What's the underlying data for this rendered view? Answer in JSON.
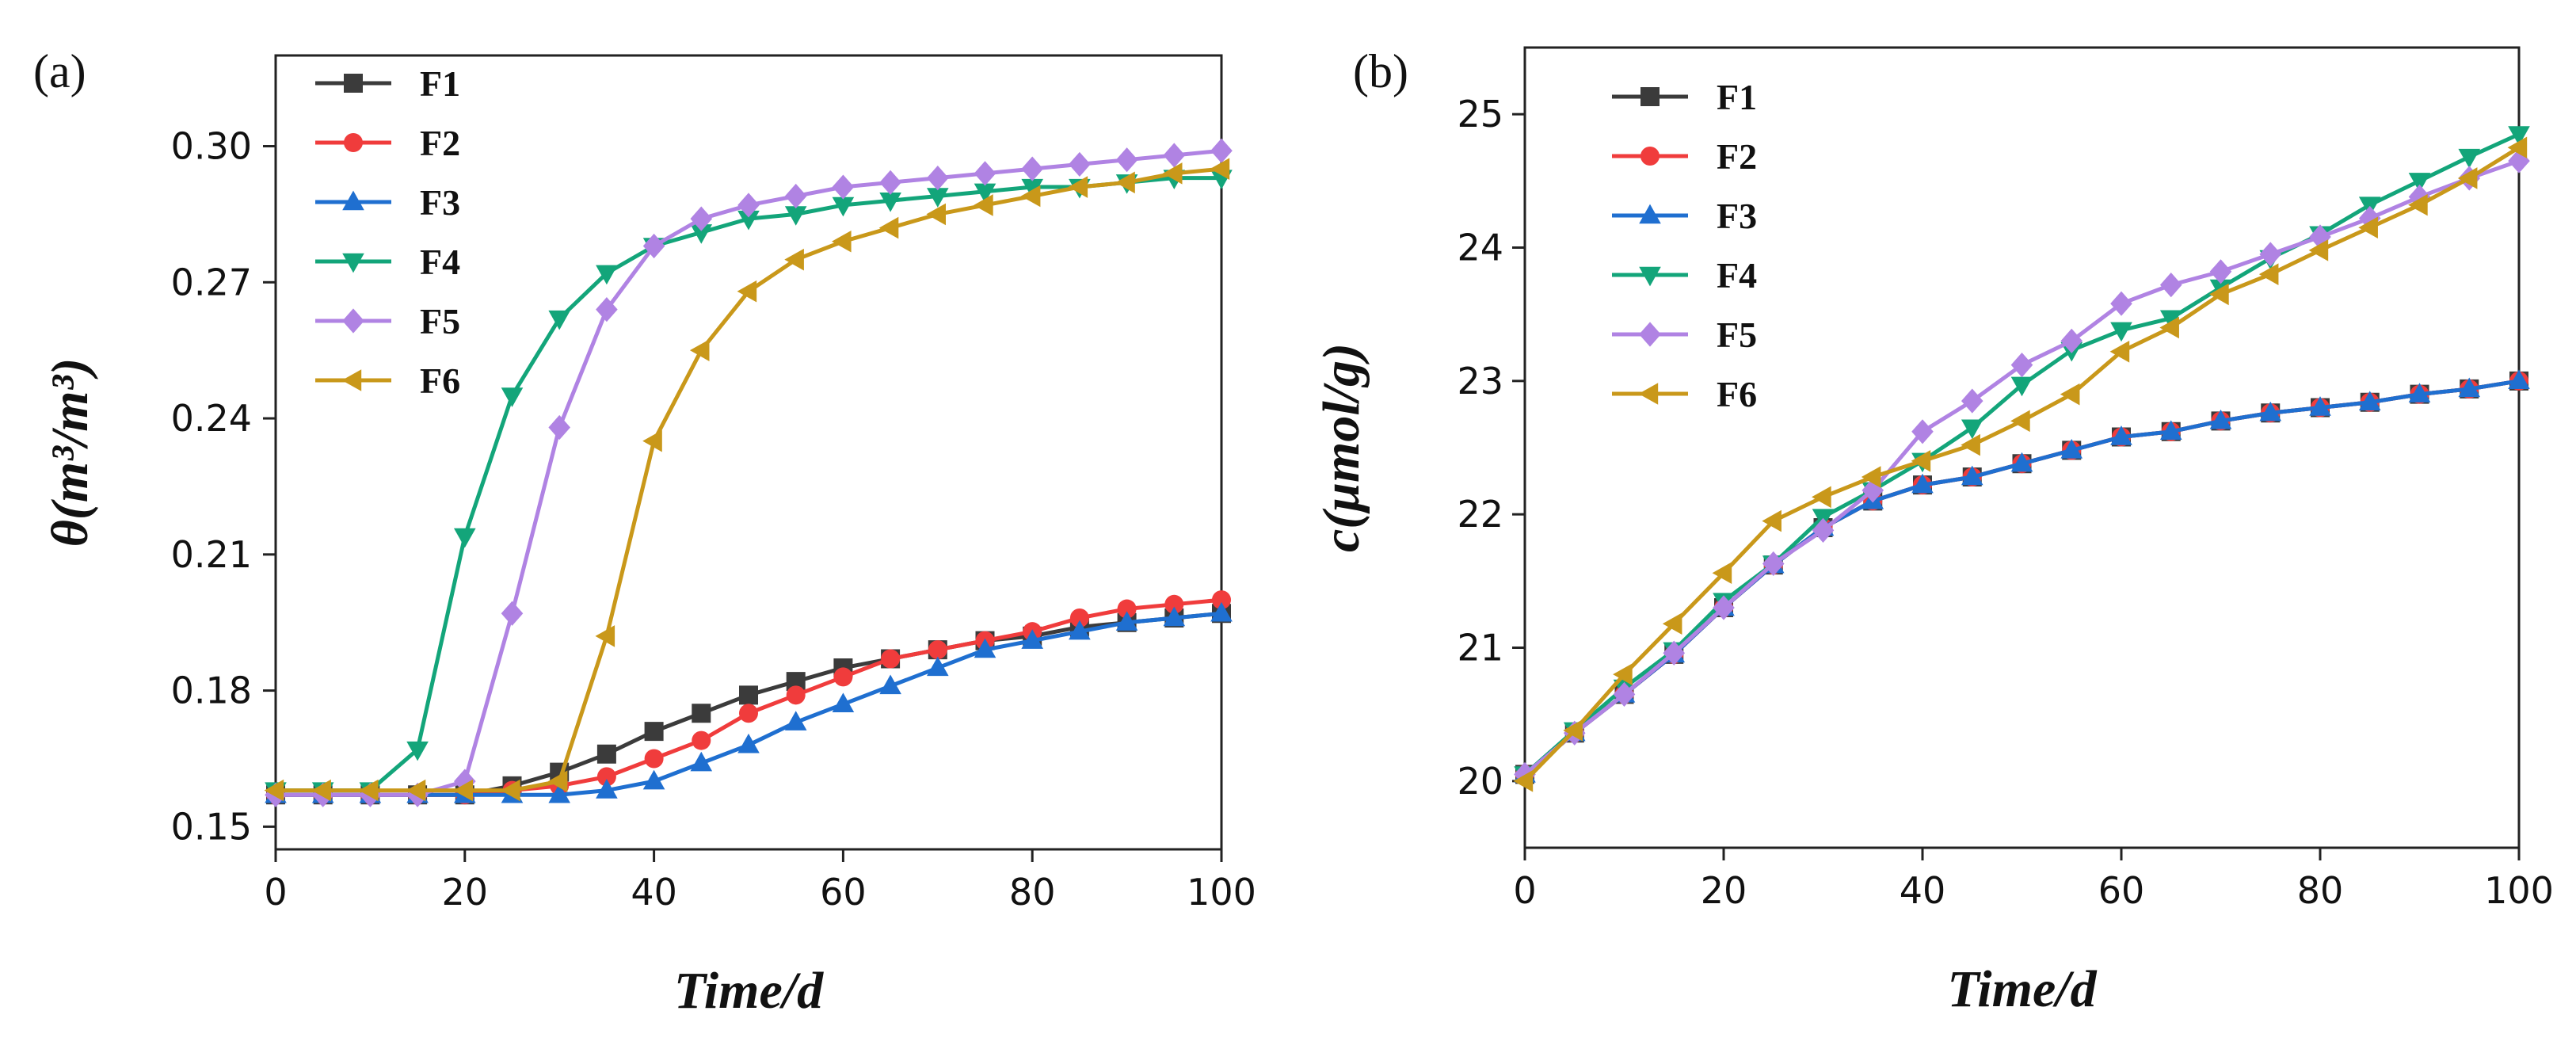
{
  "chart_data": [
    {
      "type": "line",
      "panel_label": "(a)",
      "title": "",
      "xlabel": "Time/d",
      "ylabel": "θ(m³/m³)",
      "xlim": [
        0,
        100
      ],
      "ylim": [
        0.145,
        0.32
      ],
      "x_ticks": [
        "0",
        "20",
        "40",
        "60",
        "80",
        "100"
      ],
      "y_ticks": [
        "0.15",
        "0.18",
        "0.21",
        "0.24",
        "0.27",
        "0.30"
      ],
      "legend_position": "top-left",
      "x": [
        0,
        5,
        10,
        15,
        20,
        25,
        30,
        35,
        40,
        45,
        50,
        55,
        60,
        65,
        70,
        75,
        80,
        85,
        90,
        95,
        100
      ],
      "series": [
        {
          "name": "F1",
          "color": "#3b3b3b",
          "marker": "square",
          "values": [
            0.157,
            0.157,
            0.157,
            0.157,
            0.157,
            0.159,
            0.162,
            0.166,
            0.171,
            0.175,
            0.179,
            0.182,
            0.185,
            0.187,
            0.189,
            0.191,
            0.192,
            0.194,
            0.195,
            0.196,
            0.197
          ]
        },
        {
          "name": "F2",
          "color": "#f03c3c",
          "marker": "circle",
          "values": [
            0.157,
            0.157,
            0.157,
            0.157,
            0.157,
            0.158,
            0.159,
            0.161,
            0.165,
            0.169,
            0.175,
            0.179,
            0.183,
            0.187,
            0.189,
            0.191,
            0.193,
            0.196,
            0.198,
            0.199,
            0.2
          ]
        },
        {
          "name": "F3",
          "color": "#1f6fd0",
          "marker": "triangle-up",
          "values": [
            0.157,
            0.157,
            0.157,
            0.157,
            0.157,
            0.157,
            0.157,
            0.158,
            0.16,
            0.164,
            0.168,
            0.173,
            0.177,
            0.181,
            0.185,
            0.189,
            0.191,
            0.193,
            0.195,
            0.196,
            0.197
          ]
        },
        {
          "name": "F4",
          "color": "#13a57a",
          "marker": "triangle-down",
          "values": [
            0.158,
            0.158,
            0.158,
            0.167,
            0.214,
            0.245,
            0.262,
            0.272,
            0.278,
            0.281,
            0.284,
            0.285,
            0.287,
            0.288,
            0.289,
            0.29,
            0.291,
            0.291,
            0.292,
            0.293,
            0.293
          ]
        },
        {
          "name": "F5",
          "color": "#b083e3",
          "marker": "diamond",
          "values": [
            0.157,
            0.157,
            0.157,
            0.157,
            0.16,
            0.197,
            0.238,
            0.264,
            0.278,
            0.284,
            0.287,
            0.289,
            0.291,
            0.292,
            0.293,
            0.294,
            0.295,
            0.296,
            0.297,
            0.298,
            0.299
          ]
        },
        {
          "name": "F6",
          "color": "#c9981a",
          "marker": "triangle-left",
          "values": [
            0.158,
            0.158,
            0.158,
            0.158,
            0.158,
            0.158,
            0.16,
            0.192,
            0.235,
            0.255,
            0.268,
            0.275,
            0.279,
            0.282,
            0.285,
            0.287,
            0.289,
            0.291,
            0.292,
            0.294,
            0.295
          ]
        }
      ]
    },
    {
      "type": "line",
      "panel_label": "(b)",
      "title": "",
      "xlabel": "Time/d",
      "ylabel": "c(μmol/g)",
      "xlim": [
        0,
        100
      ],
      "ylim": [
        19.5,
        25.5
      ],
      "x_ticks": [
        "0",
        "20",
        "40",
        "60",
        "80",
        "100"
      ],
      "y_ticks": [
        "20",
        "21",
        "22",
        "23",
        "24",
        "25"
      ],
      "legend_position": "top-left",
      "x": [
        0,
        5,
        10,
        15,
        20,
        25,
        30,
        35,
        40,
        45,
        50,
        55,
        60,
        65,
        70,
        75,
        80,
        85,
        90,
        95,
        100
      ],
      "series": [
        {
          "name": "F1",
          "color": "#3b3b3b",
          "marker": "square",
          "values": [
            20.05,
            20.36,
            20.65,
            20.95,
            21.3,
            21.62,
            21.9,
            22.1,
            22.22,
            22.28,
            22.38,
            22.48,
            22.58,
            22.62,
            22.7,
            22.76,
            22.8,
            22.84,
            22.9,
            22.94,
            23.0
          ]
        },
        {
          "name": "F2",
          "color": "#f03c3c",
          "marker": "circle",
          "values": [
            20.05,
            20.36,
            20.65,
            20.95,
            21.3,
            21.62,
            21.9,
            22.1,
            22.22,
            22.28,
            22.38,
            22.48,
            22.58,
            22.62,
            22.7,
            22.76,
            22.8,
            22.84,
            22.9,
            22.94,
            23.0
          ]
        },
        {
          "name": "F3",
          "color": "#1f6fd0",
          "marker": "triangle-up",
          "values": [
            20.05,
            20.36,
            20.65,
            20.95,
            21.3,
            21.62,
            21.9,
            22.1,
            22.22,
            22.28,
            22.38,
            22.48,
            22.58,
            22.62,
            22.7,
            22.76,
            22.8,
            22.84,
            22.9,
            22.94,
            23.0
          ]
        },
        {
          "name": "F4",
          "color": "#13a57a",
          "marker": "triangle-down",
          "values": [
            20.05,
            20.38,
            20.7,
            20.98,
            21.35,
            21.63,
            21.98,
            22.18,
            22.4,
            22.65,
            22.97,
            23.23,
            23.38,
            23.47,
            23.7,
            23.92,
            24.1,
            24.32,
            24.5,
            24.68,
            24.85
          ]
        },
        {
          "name": "F5",
          "color": "#b083e3",
          "marker": "diamond",
          "values": [
            20.05,
            20.36,
            20.65,
            20.96,
            21.3,
            21.63,
            21.88,
            22.18,
            22.62,
            22.85,
            23.12,
            23.3,
            23.58,
            23.72,
            23.82,
            23.95,
            24.08,
            24.22,
            24.38,
            24.52,
            24.65
          ]
        },
        {
          "name": "F6",
          "color": "#c9981a",
          "marker": "triangle-left",
          "values": [
            20.0,
            20.38,
            20.8,
            21.18,
            21.56,
            21.95,
            22.13,
            22.28,
            22.4,
            22.52,
            22.7,
            22.9,
            23.22,
            23.4,
            23.65,
            23.8,
            23.98,
            24.15,
            24.32,
            24.52,
            24.75
          ]
        }
      ]
    }
  ]
}
